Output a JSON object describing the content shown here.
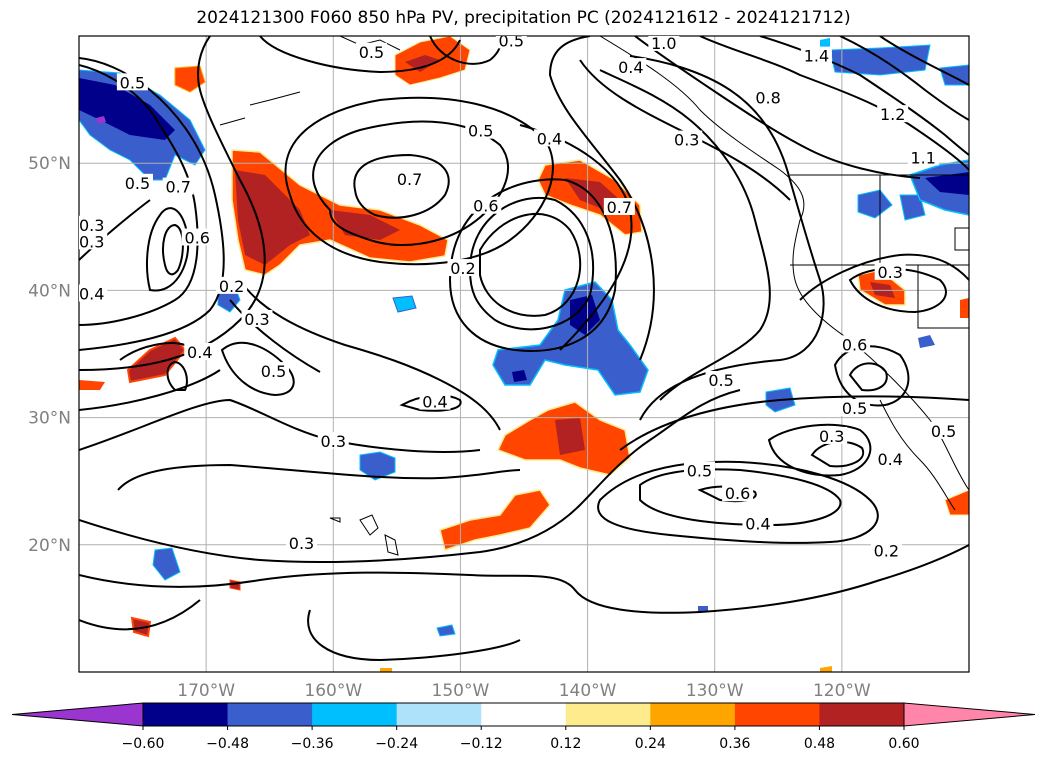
{
  "chart_data": {
    "type": "contour-map",
    "title": "2024121300 F060 850 hPa PV, precipitation PC (2024121612 - 2024121712)",
    "projection": "equirectangular",
    "lon_range": [
      -180,
      -110
    ],
    "lat_range": [
      10,
      60
    ],
    "lat_ticks": [
      {
        "value": 20,
        "label": "20°N"
      },
      {
        "value": 30,
        "label": "30°N"
      },
      {
        "value": 40,
        "label": "40°N"
      },
      {
        "value": 50,
        "label": "50°N"
      }
    ],
    "lon_ticks": [
      {
        "value": -170,
        "label": "170°W"
      },
      {
        "value": -160,
        "label": "160°W"
      },
      {
        "value": -150,
        "label": "150°W"
      },
      {
        "value": -140,
        "label": "140°W"
      },
      {
        "value": -130,
        "label": "130°W"
      },
      {
        "value": -120,
        "label": "120°W"
      }
    ],
    "grid": true,
    "colorbar": {
      "orientation": "horizontal",
      "extend": "both",
      "levels": [
        -0.72,
        -0.6,
        -0.48,
        -0.36,
        -0.24,
        -0.12,
        0.12,
        0.24,
        0.36,
        0.48,
        0.6,
        0.72
      ],
      "tick_labels": [
        "−0.60",
        "−0.48",
        "−0.36",
        "−0.24",
        "−0.12",
        "0.12",
        "0.24",
        "0.36",
        "0.48",
        "0.60"
      ],
      "colors": [
        "#9a35cf",
        "#00008b",
        "#3a5fcd",
        "#00bfff",
        "#ade2fa",
        "#ffffff",
        "#fdeb8e",
        "#ffa500",
        "#ff4500",
        "#b22222",
        "#ff85aa"
      ]
    },
    "contour_labels": [
      {
        "lon": -175.8,
        "lat": 56.2,
        "text": "0.5"
      },
      {
        "lon": -175.4,
        "lat": 48.3,
        "text": "0.5"
      },
      {
        "lon": -172.2,
        "lat": 48.0,
        "text": "0.7"
      },
      {
        "lon": -170.7,
        "lat": 44.0,
        "text": "0.6"
      },
      {
        "lon": -179.0,
        "lat": 45.0,
        "text": "0.3"
      },
      {
        "lon": -179.0,
        "lat": 43.7,
        "text": "0.3"
      },
      {
        "lon": -179.0,
        "lat": 39.6,
        "text": "0.4"
      },
      {
        "lon": -168.0,
        "lat": 40.2,
        "text": "0.2"
      },
      {
        "lon": -166.0,
        "lat": 37.6,
        "text": "0.3"
      },
      {
        "lon": -170.5,
        "lat": 35.0,
        "text": "0.4"
      },
      {
        "lon": -164.7,
        "lat": 33.5,
        "text": "0.5"
      },
      {
        "lon": -157.0,
        "lat": 58.6,
        "text": "0.5"
      },
      {
        "lon": -148.4,
        "lat": 52.4,
        "text": "0.5"
      },
      {
        "lon": -154.0,
        "lat": 48.6,
        "text": "0.7"
      },
      {
        "lon": -148.0,
        "lat": 46.5,
        "text": "0.6"
      },
      {
        "lon": -149.8,
        "lat": 41.6,
        "text": "0.2"
      },
      {
        "lon": -143.0,
        "lat": 51.8,
        "text": "0.4"
      },
      {
        "lon": -137.5,
        "lat": 46.4,
        "text": "0.7"
      },
      {
        "lon": -152.0,
        "lat": 31.1,
        "text": "0.4"
      },
      {
        "lon": -160.0,
        "lat": 28.0,
        "text": "0.3"
      },
      {
        "lon": -162.5,
        "lat": 20.0,
        "text": "0.3"
      },
      {
        "lon": -146.0,
        "lat": 59.5,
        "text": "0.5"
      },
      {
        "lon": -134.0,
        "lat": 59.3,
        "text": "1.0"
      },
      {
        "lon": -136.6,
        "lat": 57.4,
        "text": "0.4"
      },
      {
        "lon": -132.2,
        "lat": 51.7,
        "text": "0.3"
      },
      {
        "lon": -125.8,
        "lat": 55.0,
        "text": "0.8"
      },
      {
        "lon": -122.0,
        "lat": 58.3,
        "text": "1.4"
      },
      {
        "lon": -116.0,
        "lat": 53.7,
        "text": "1.2"
      },
      {
        "lon": -113.6,
        "lat": 50.3,
        "text": "1.1"
      },
      {
        "lon": -129.5,
        "lat": 32.8,
        "text": "0.5"
      },
      {
        "lon": -131.2,
        "lat": 25.7,
        "text": "0.5"
      },
      {
        "lon": -128.2,
        "lat": 23.9,
        "text": "0.6"
      },
      {
        "lon": -126.6,
        "lat": 21.5,
        "text": "0.4"
      },
      {
        "lon": -120.8,
        "lat": 28.4,
        "text": "0.3"
      },
      {
        "lon": -116.5,
        "lat": 19.4,
        "text": "0.2"
      },
      {
        "lon": -119.0,
        "lat": 35.6,
        "text": "0.6"
      },
      {
        "lon": -119.0,
        "lat": 30.6,
        "text": "0.5"
      },
      {
        "lon": -116.2,
        "lat": 26.6,
        "text": "0.4"
      },
      {
        "lon": -112.0,
        "lat": 28.8,
        "text": "0.5"
      },
      {
        "lon": -116.2,
        "lat": 41.3,
        "text": "0.3"
      }
    ]
  }
}
